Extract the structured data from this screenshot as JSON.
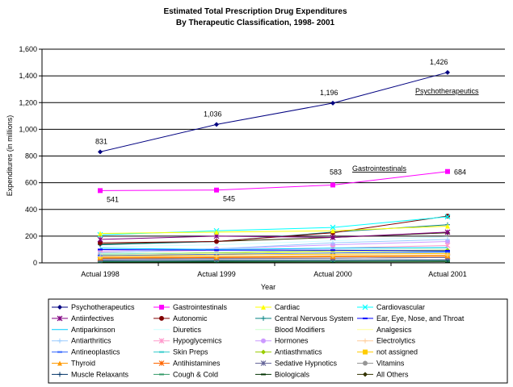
{
  "chart_data": {
    "type": "line",
    "title": "Estimated Total Prescription Drug Expenditures",
    "subtitle": "By Therapeutic Classification, 1998- 2001",
    "xlabel": "Year",
    "ylabel": "Expenditures (in millions)",
    "ylim": [
      0,
      1600
    ],
    "yticks": [
      "0",
      "200",
      "400",
      "600",
      "800",
      "1,000",
      "1,200",
      "1,400",
      "1,600"
    ],
    "categories": [
      "Actual 1998",
      "Actual 1999",
      "Actual 2000",
      "Actual 2001"
    ],
    "grid": true,
    "legend_placement": "bottom",
    "annotations": [
      {
        "text": "Psychotherapeutics",
        "series": "Psychotherapeutics"
      },
      {
        "text": "Gastrointestinals",
        "series": "Gastrointestinals"
      }
    ],
    "series": [
      {
        "name": "Psychotherapeutics",
        "color": "#000080",
        "marker": "diamond",
        "values": [
          831,
          1036,
          1196,
          1426
        ],
        "labels": [
          "831",
          "1,036",
          "1,196",
          "1,426"
        ]
      },
      {
        "name": "Gastrointestinals",
        "color": "#FF00FF",
        "marker": "square",
        "values": [
          541,
          545,
          583,
          684
        ],
        "labels": [
          "541",
          "545",
          "583",
          "684"
        ]
      },
      {
        "name": "Cardiac",
        "color": "#FFFF00",
        "marker": "triangle",
        "values": [
          220,
          230,
          240,
          275
        ]
      },
      {
        "name": "Cardiovascular",
        "color": "#00FFFF",
        "marker": "x",
        "values": [
          210,
          240,
          265,
          345
        ]
      },
      {
        "name": "Antiinfectives",
        "color": "#800080",
        "marker": "star",
        "values": [
          175,
          200,
          190,
          230
        ]
      },
      {
        "name": "Autonomic",
        "color": "#800000",
        "marker": "circle",
        "values": [
          150,
          160,
          225,
          350
        ]
      },
      {
        "name": "Central Nervous System",
        "color": "#008080",
        "marker": "plus",
        "values": [
          135,
          160,
          230,
          285
        ]
      },
      {
        "name": "Ear, Eye, Nose, and Throat",
        "color": "#0000FF",
        "marker": "dash",
        "values": [
          100,
          95,
          95,
          90
        ]
      },
      {
        "name": "Antiparkinson",
        "color": "#00CCFF",
        "marker": "none",
        "values": [
          110,
          100,
          110,
          115
        ]
      },
      {
        "name": "Diuretics",
        "color": "#CCFFFF",
        "marker": "none",
        "values": [
          120,
          135,
          165,
          195
        ]
      },
      {
        "name": "Blood Modifiers",
        "color": "#CCFFCC",
        "marker": "none",
        "values": [
          70,
          80,
          95,
          110
        ]
      },
      {
        "name": "Analgesics",
        "color": "#FFFF99",
        "marker": "none",
        "values": [
          60,
          70,
          80,
          90
        ]
      },
      {
        "name": "Antiarthritics",
        "color": "#99CCFF",
        "marker": "plus",
        "values": [
          75,
          105,
          150,
          175
        ]
      },
      {
        "name": "Hypoglycemics",
        "color": "#FF99CC",
        "marker": "star",
        "values": [
          80,
          95,
          110,
          130
        ]
      },
      {
        "name": "Hormones",
        "color": "#CC99FF",
        "marker": "circle",
        "values": [
          90,
          105,
          135,
          160
        ]
      },
      {
        "name": "Electrolytics",
        "color": "#FFCC99",
        "marker": "plus",
        "values": [
          45,
          50,
          55,
          60
        ]
      },
      {
        "name": "Antineoplastics",
        "color": "#3366FF",
        "marker": "dash",
        "values": [
          55,
          65,
          75,
          80
        ]
      },
      {
        "name": "Skin Preps",
        "color": "#33CCCC",
        "marker": "dash",
        "values": [
          65,
          70,
          75,
          85
        ]
      },
      {
        "name": "Antiasthmatics",
        "color": "#99CC00",
        "marker": "diamond",
        "values": [
          60,
          75,
          90,
          95
        ]
      },
      {
        "name": "not assigned",
        "color": "#FFCC00",
        "marker": "square",
        "values": [
          50,
          60,
          65,
          70
        ]
      },
      {
        "name": "Thyroid",
        "color": "#FF9900",
        "marker": "triangle",
        "values": [
          40,
          45,
          50,
          55
        ]
      },
      {
        "name": "Antihistamines",
        "color": "#FF6600",
        "marker": "star",
        "values": [
          35,
          40,
          45,
          50
        ]
      },
      {
        "name": "Sedative Hypnotics",
        "color": "#666699",
        "marker": "star",
        "values": [
          25,
          30,
          35,
          40
        ]
      },
      {
        "name": "Vitamins",
        "color": "#969696",
        "marker": "circle",
        "values": [
          30,
          35,
          35,
          40
        ]
      },
      {
        "name": "Muscle Relaxants",
        "color": "#003366",
        "marker": "plus",
        "values": [
          15,
          18,
          20,
          22
        ]
      },
      {
        "name": "Cough & Cold",
        "color": "#339966",
        "marker": "dash",
        "values": [
          10,
          12,
          12,
          14
        ]
      },
      {
        "name": "Biologicals",
        "color": "#003300",
        "marker": "dash",
        "values": [
          5,
          6,
          7,
          8
        ]
      },
      {
        "name": "All Others",
        "color": "#333300",
        "marker": "diamond",
        "values": [
          140,
          160,
          190,
          225
        ]
      }
    ]
  }
}
